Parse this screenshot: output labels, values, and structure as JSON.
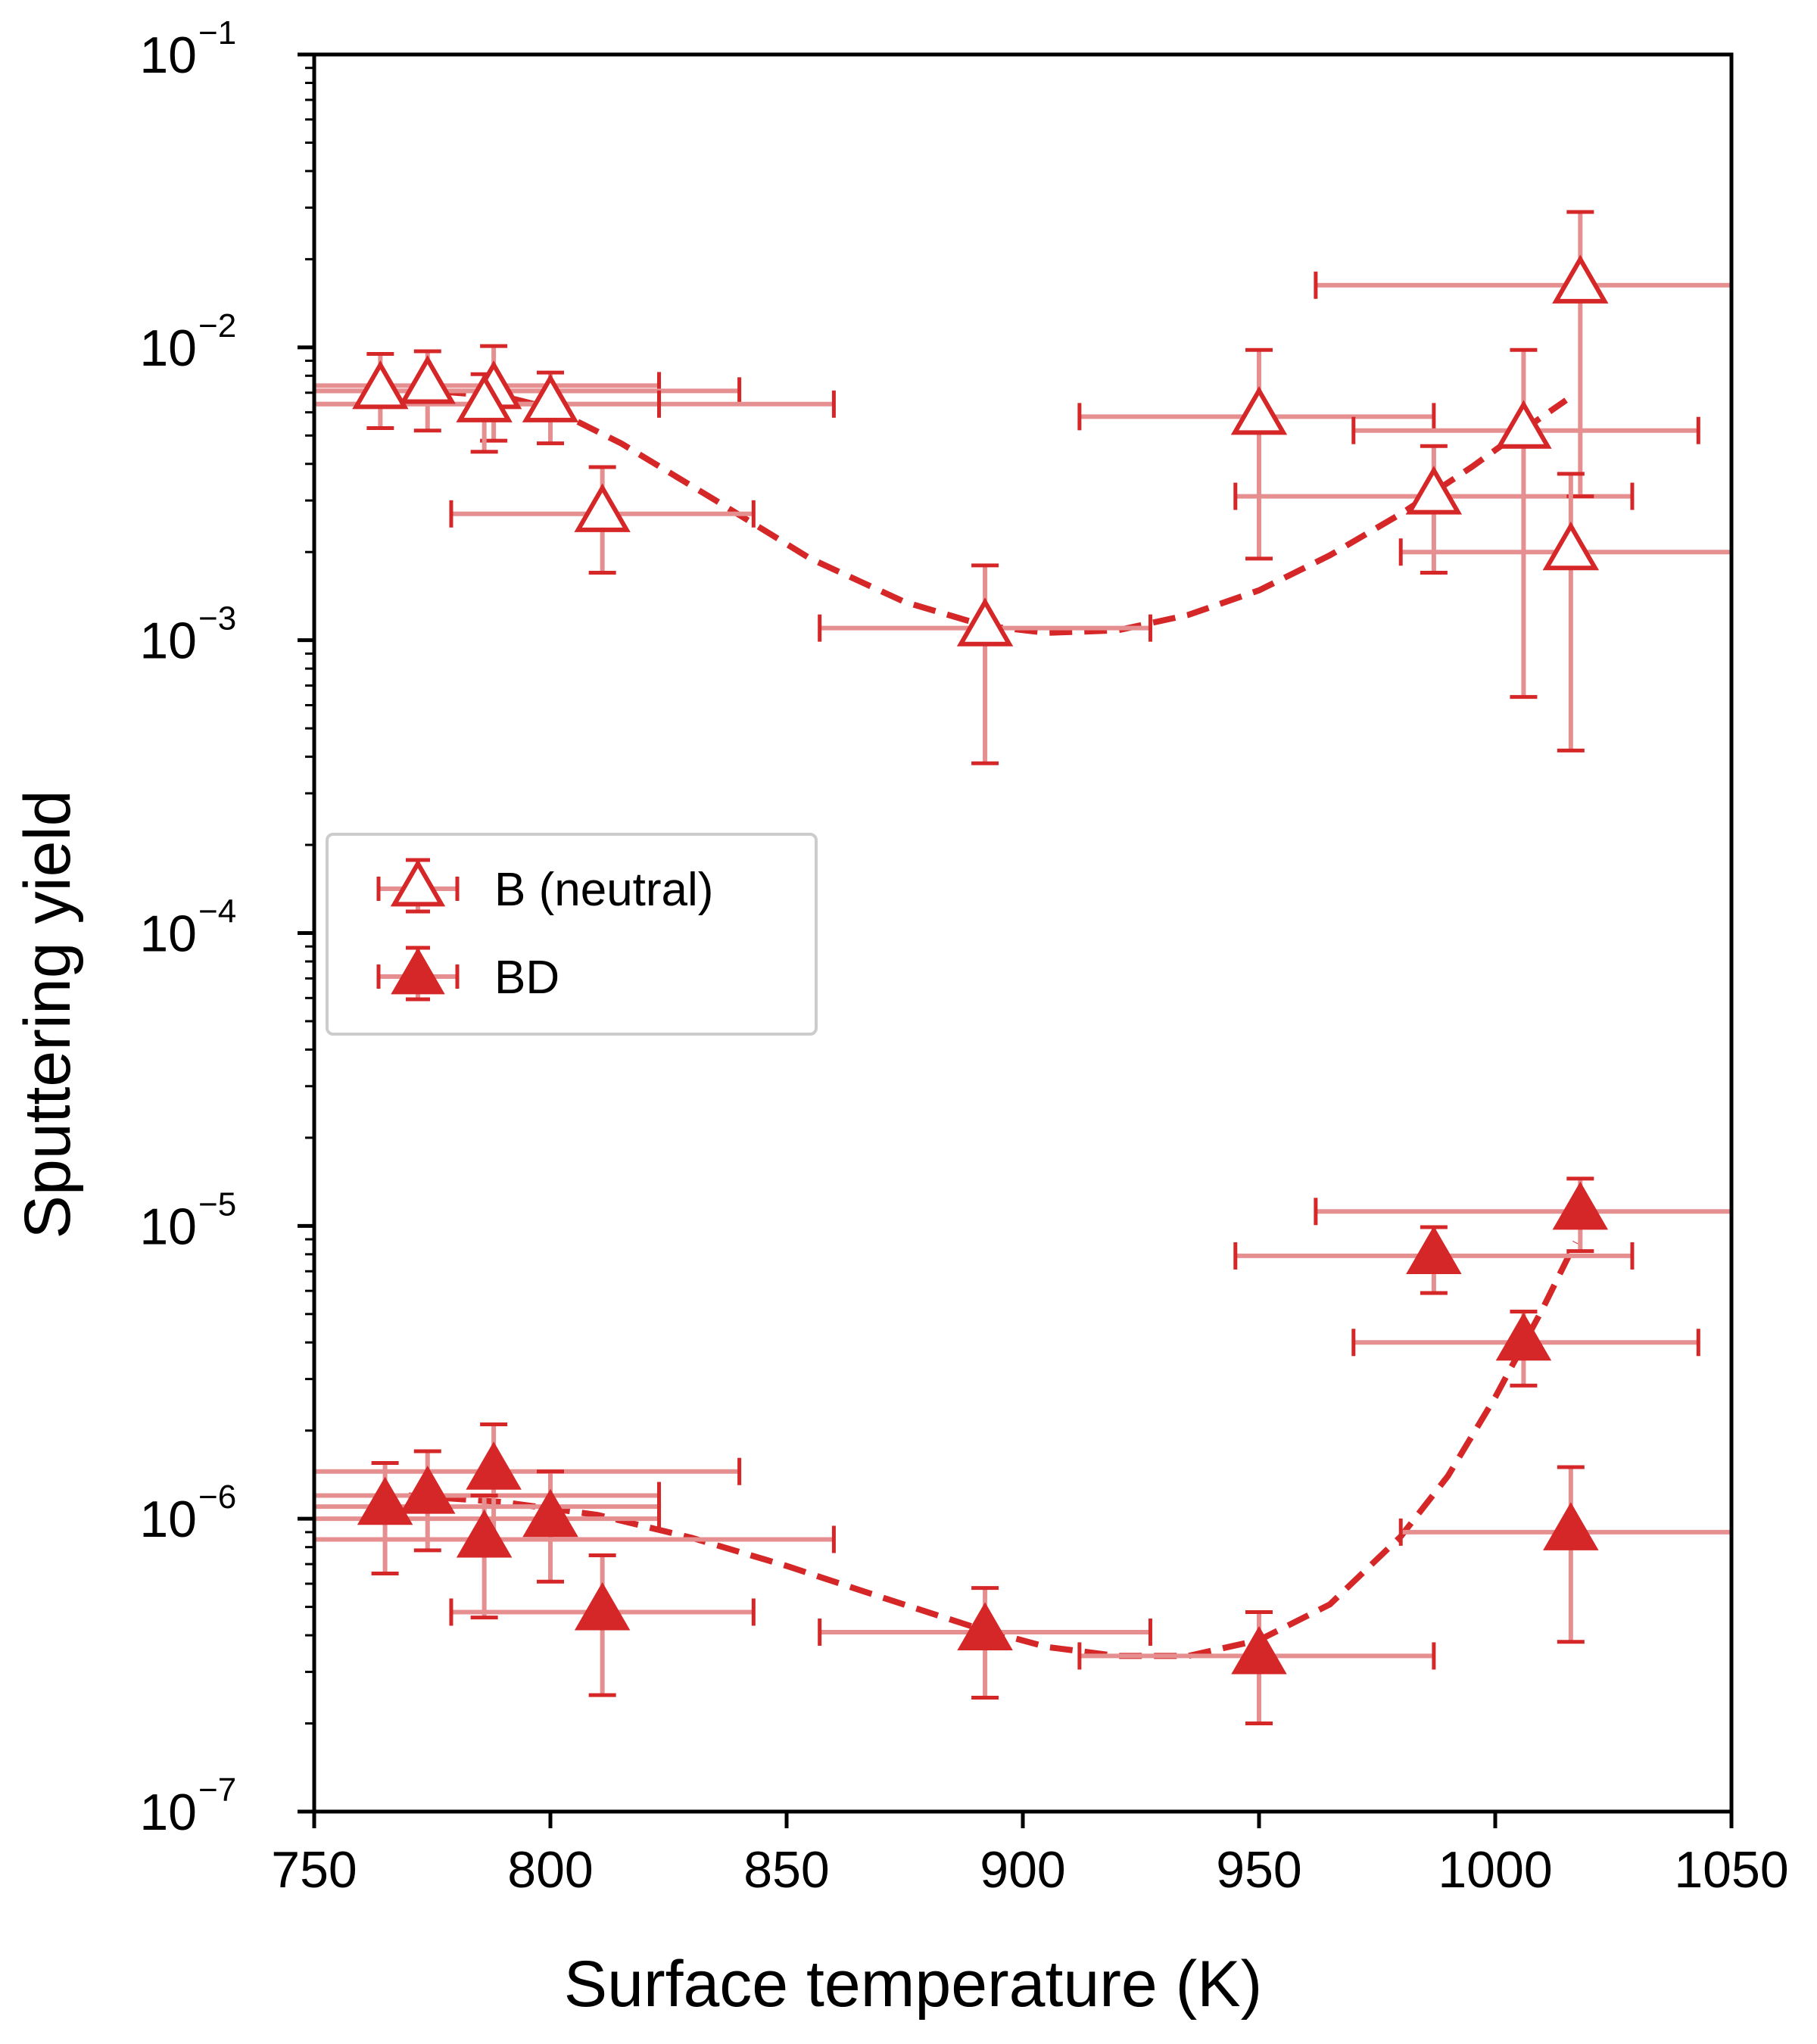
{
  "chart_data": {
    "type": "scatter",
    "xlabel": "Surface temperature (K)",
    "ylabel": "Sputtering yield",
    "xlim": [
      750,
      1050
    ],
    "ylim": [
      1e-07,
      0.1
    ],
    "yscale": "log",
    "xticks": [
      "750",
      "800",
      "850",
      "900",
      "950",
      "1000",
      "1050"
    ],
    "xtick_values": [
      750,
      800,
      850,
      900,
      950,
      1000,
      1050
    ],
    "ytick_base": "10",
    "yticks": [
      {
        "value": 1e-07,
        "exp": "−7"
      },
      {
        "value": 1e-06,
        "exp": "−6"
      },
      {
        "value": 1e-05,
        "exp": "−5"
      },
      {
        "value": 0.0001,
        "exp": "−4"
      },
      {
        "value": 0.001,
        "exp": "−3"
      },
      {
        "value": 0.01,
        "exp": "−2"
      },
      {
        "value": 0.1,
        "exp": "−1"
      }
    ],
    "grid": false,
    "legend_position": "center-left",
    "colors": {
      "main": "#d62728",
      "error": "#e58f90",
      "axis": "#000000",
      "legend_border": "#cccccc"
    },
    "series": [
      {
        "name": "B (neutral)",
        "marker": "triangle-open",
        "points": [
          {
            "x": 764,
            "y": 0.0071,
            "xerr": [
              750,
              823
            ],
            "yerr": [
              0.0053,
              0.0095
            ]
          },
          {
            "x": 774,
            "y": 0.0074,
            "xerr": [
              750,
              823
            ],
            "yerr": [
              0.0052,
              0.0097
            ]
          },
          {
            "x": 788,
            "y": 0.0071,
            "xerr": [
              750,
              840
            ],
            "yerr": [
              0.0048,
              0.0101
            ]
          },
          {
            "x": 786,
            "y": 0.0064,
            "xerr": [
              750,
              860
            ],
            "yerr": [
              0.0044,
              0.0081
            ]
          },
          {
            "x": 800,
            "y": 0.0064,
            "xerr": [
              750,
              823
            ],
            "yerr": [
              0.0047,
              0.0082
            ]
          },
          {
            "x": 811,
            "y": 0.0027,
            "xerr": [
              779,
              843
            ],
            "yerr": [
              0.0017,
              0.0039
            ]
          },
          {
            "x": 892,
            "y": 0.0011,
            "xerr": [
              857,
              927
            ],
            "yerr": [
              0.00038,
              0.0018
            ]
          },
          {
            "x": 950,
            "y": 0.0058,
            "xerr": [
              912,
              987
            ],
            "yerr": [
              0.0019,
              0.0098
            ]
          },
          {
            "x": 987,
            "y": 0.0031,
            "xerr": [
              945,
              1029
            ],
            "yerr": [
              0.0017,
              0.0046
            ]
          },
          {
            "x": 1006,
            "y": 0.0052,
            "xerr": [
              970,
              1043
            ],
            "yerr": [
              0.00064,
              0.0098
            ]
          },
          {
            "x": 1018,
            "y": 0.0163,
            "xerr": [
              962,
              1050
            ],
            "yerr": [
              0.0031,
              0.029
            ]
          },
          {
            "x": 1016,
            "y": 0.002,
            "xerr": [
              980,
              1050
            ],
            "yerr": [
              0.00042,
              0.0037
            ]
          }
        ],
        "fit": {
          "x": [
            770,
            790,
            800,
            815,
            835,
            855,
            875,
            892,
            905,
            920,
            935,
            950,
            965,
            980,
            995,
            1005,
            1015
          ],
          "y": [
            0.0072,
            0.0068,
            0.0062,
            0.0047,
            0.003,
            0.0019,
            0.00135,
            0.00112,
            0.00106,
            0.00108,
            0.00122,
            0.00148,
            0.00195,
            0.0027,
            0.0039,
            0.0051,
            0.0066
          ]
        }
      },
      {
        "name": "BD",
        "marker": "triangle-filled",
        "points": [
          {
            "x": 765,
            "y": 1.1e-06,
            "xerr": [
              750,
              823
            ],
            "yerr": [
              6.5e-07,
              1.55e-06
            ]
          },
          {
            "x": 774,
            "y": 1.2e-06,
            "xerr": [
              750,
              823
            ],
            "yerr": [
              7.8e-07,
              1.7e-06
            ]
          },
          {
            "x": 788,
            "y": 1.45e-06,
            "xerr": [
              750,
              840
            ],
            "yerr": [
              8.5e-07,
              2.1e-06
            ]
          },
          {
            "x": 786,
            "y": 8.5e-07,
            "xerr": [
              750,
              860
            ],
            "yerr": [
              4.6e-07,
              1.2e-06
            ]
          },
          {
            "x": 800,
            "y": 1e-06,
            "xerr": [
              750,
              823
            ],
            "yerr": [
              6.1e-07,
              1.45e-06
            ]
          },
          {
            "x": 811,
            "y": 4.8e-07,
            "xerr": [
              779,
              843
            ],
            "yerr": [
              2.5e-07,
              7.5e-07
            ]
          },
          {
            "x": 892,
            "y": 4.1e-07,
            "xerr": [
              857,
              927
            ],
            "yerr": [
              2.45e-07,
              5.8e-07
            ]
          },
          {
            "x": 950,
            "y": 3.4e-07,
            "xerr": [
              912,
              987
            ],
            "yerr": [
              2e-07,
              4.8e-07
            ]
          },
          {
            "x": 987,
            "y": 7.9e-06,
            "xerr": [
              945,
              1029
            ],
            "yerr": [
              5.9e-06,
              9.9e-06
            ]
          },
          {
            "x": 1006,
            "y": 4e-06,
            "xerr": [
              970,
              1043
            ],
            "yerr": [
              2.85e-06,
              5.1e-06
            ]
          },
          {
            "x": 1018,
            "y": 1.12e-05,
            "xerr": [
              962,
              1050
            ],
            "yerr": [
              8.2e-06,
              1.45e-05
            ]
          },
          {
            "x": 1016,
            "y": 9e-07,
            "xerr": [
              980,
              1050
            ],
            "yerr": [
              3.8e-07,
              1.5e-06
            ]
          }
        ],
        "fit": {
          "x": [
            770,
            790,
            810,
            830,
            850,
            870,
            890,
            905,
            920,
            935,
            950,
            965,
            980,
            990,
            1000,
            1010,
            1017
          ],
          "y": [
            1.2e-06,
            1.14e-06,
            1.03e-06,
            8.6e-07,
            6.9e-07,
            5.4e-07,
            4.25e-07,
            3.65e-07,
            3.4e-07,
            3.4e-07,
            3.85e-07,
            5.1e-07,
            8.7e-07,
            1.4e-06,
            2.6e-06,
            5.2e-06,
            8.8e-06
          ]
        }
      }
    ]
  }
}
